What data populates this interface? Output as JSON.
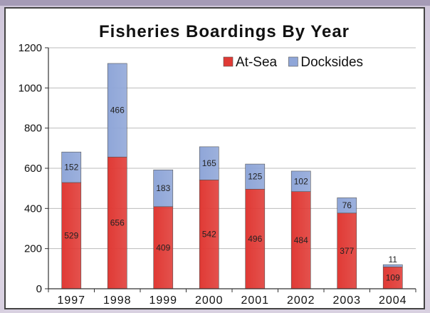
{
  "chart_data": {
    "type": "bar",
    "stacked": true,
    "title": "Fisheries Boardings By Year",
    "xlabel": "",
    "ylabel": "",
    "categories": [
      "1997",
      "1998",
      "1999",
      "2000",
      "2001",
      "2002",
      "2003",
      "2004"
    ],
    "series": [
      {
        "name": "At-Sea",
        "color": "#e03a35",
        "values": [
          529,
          656,
          409,
          542,
          496,
          484,
          377,
          109
        ]
      },
      {
        "name": "Docksides",
        "color": "#8fa6d8",
        "values": [
          152,
          466,
          183,
          165,
          125,
          102,
          76,
          11
        ]
      }
    ],
    "ylim": [
      0,
      1200
    ],
    "yticks": [
      0,
      200,
      400,
      600,
      800,
      1000,
      1200
    ],
    "legend": "top-right",
    "grid": "horizontal"
  }
}
